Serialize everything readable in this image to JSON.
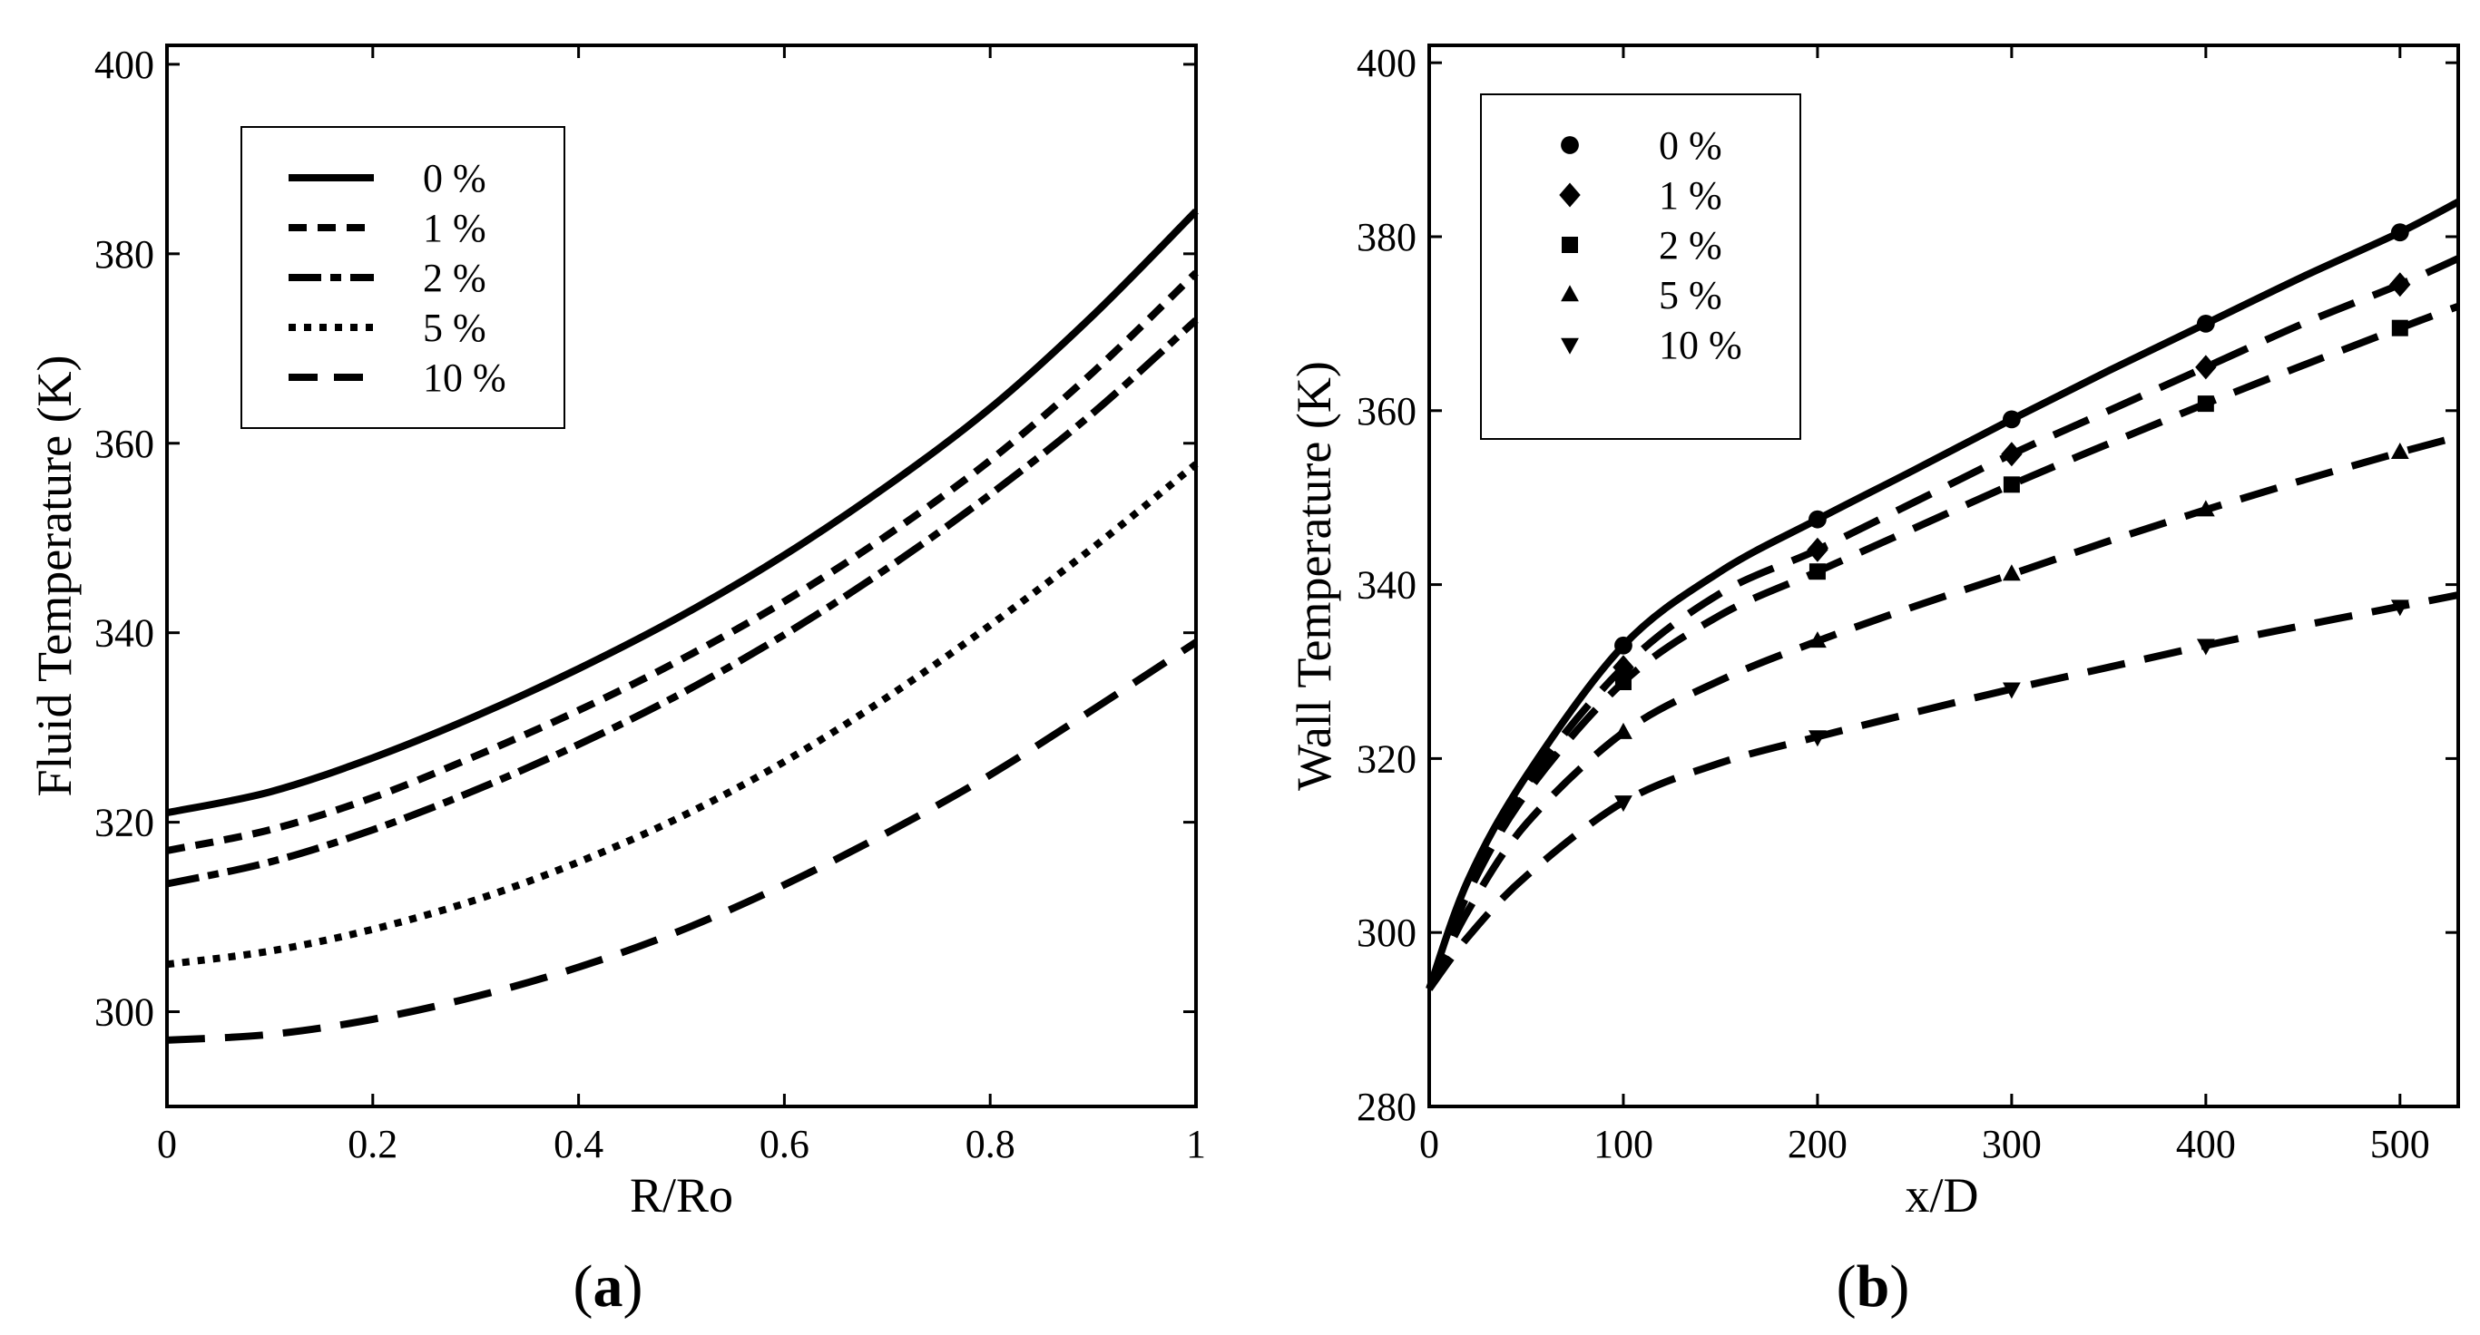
{
  "chart_data": [
    {
      "type": "line",
      "panel_label_prefix": "(",
      "panel_label_letter": "a",
      "panel_label_suffix": ")",
      "xlabel": "R/Ro",
      "ylabel": "Fluid Temperature (K)",
      "xlim": [
        0,
        1
      ],
      "ylim": [
        290,
        402
      ],
      "xticks": [
        "0",
        "0.2",
        "0.4",
        "0.6",
        "0.8",
        "1"
      ],
      "xtick_values": [
        0,
        0.2,
        0.4,
        0.6,
        0.8,
        1
      ],
      "yticks": [
        "300",
        "320",
        "340",
        "360",
        "380",
        "400"
      ],
      "ytick_values": [
        300,
        320,
        340,
        360,
        380,
        400
      ],
      "legend_position": "top-left",
      "series": [
        {
          "name": "0 %",
          "style": "solid",
          "x": [
            0,
            0.1,
            0.2,
            0.3,
            0.4,
            0.5,
            0.6,
            0.7,
            0.8,
            0.9,
            1.0
          ],
          "y": [
            321.0,
            323.2,
            326.8,
            331.2,
            336.2,
            341.8,
            348.2,
            355.5,
            363.7,
            373.5,
            384.5
          ]
        },
        {
          "name": "1 %",
          "style": "short-dash",
          "x": [
            0,
            0.1,
            0.2,
            0.3,
            0.4,
            0.5,
            0.6,
            0.7,
            0.8,
            0.9,
            1.0
          ],
          "y": [
            317.0,
            319.2,
            322.6,
            327.0,
            331.8,
            337.2,
            343.3,
            350.3,
            358.2,
            367.5,
            378.0
          ]
        },
        {
          "name": "2 %",
          "style": "dash-dot",
          "x": [
            0,
            0.1,
            0.2,
            0.3,
            0.4,
            0.5,
            0.6,
            0.7,
            0.8,
            0.9,
            1.0
          ],
          "y": [
            313.5,
            315.8,
            319.2,
            323.4,
            328.2,
            333.6,
            339.8,
            346.8,
            354.6,
            363.2,
            373.0
          ]
        },
        {
          "name": "5 %",
          "style": "dotted",
          "x": [
            0,
            0.1,
            0.2,
            0.3,
            0.4,
            0.5,
            0.6,
            0.7,
            0.8,
            0.9,
            1.0
          ],
          "y": [
            305.0,
            306.4,
            308.7,
            311.8,
            315.8,
            320.6,
            326.4,
            333.2,
            340.8,
            349.0,
            357.8
          ]
        },
        {
          "name": "10 %",
          "style": "long-dash",
          "x": [
            0,
            0.1,
            0.2,
            0.3,
            0.4,
            0.5,
            0.6,
            0.7,
            0.8,
            0.9,
            1.0
          ],
          "y": [
            297.0,
            297.6,
            299.2,
            301.6,
            304.7,
            308.6,
            313.4,
            318.9,
            325.0,
            331.9,
            339.0
          ]
        }
      ]
    },
    {
      "type": "line",
      "panel_label_prefix": "(",
      "panel_label_letter": "b",
      "panel_label_suffix": ")",
      "xlabel": "x/D",
      "ylabel": "Wall Temperature (K)",
      "xlim": [
        0,
        530
      ],
      "ylim": [
        280,
        402
      ],
      "xticks": [
        "0",
        "100",
        "200",
        "300",
        "400",
        "500"
      ],
      "xtick_values": [
        0,
        100,
        200,
        300,
        400,
        500
      ],
      "yticks": [
        "280",
        "300",
        "320",
        "340",
        "360",
        "380",
        "400"
      ],
      "ytick_values": [
        280,
        300,
        320,
        340,
        360,
        380,
        400
      ],
      "legend_position": "top-left",
      "series": [
        {
          "name": "0 %",
          "style": "solid",
          "marker": "circle",
          "x": [
            0,
            20,
            50,
            100,
            150,
            200,
            250,
            300,
            350,
            400,
            450,
            500,
            530
          ],
          "y": [
            293.5,
            306.0,
            318.0,
            333.0,
            341.5,
            347.5,
            353.2,
            359.0,
            364.6,
            370.0,
            375.4,
            380.5,
            384.0
          ],
          "marker_x": [
            100,
            200,
            300,
            400,
            500
          ],
          "marker_y": [
            333.0,
            347.5,
            359.0,
            370.0,
            380.5
          ]
        },
        {
          "name": "1 %",
          "style": "long-dash",
          "marker": "diamond",
          "x": [
            0,
            20,
            50,
            100,
            150,
            200,
            250,
            300,
            350,
            400,
            450,
            500,
            530
          ],
          "y": [
            293.5,
            305.0,
            317.0,
            330.5,
            339.0,
            344.0,
            349.5,
            355.0,
            360.0,
            365.0,
            370.0,
            374.5,
            377.5
          ],
          "marker_x": [
            100,
            200,
            300,
            400,
            500
          ],
          "marker_y": [
            330.5,
            344.0,
            355.0,
            365.0,
            374.5
          ]
        },
        {
          "name": "2 %",
          "style": "long-dash",
          "marker": "square",
          "x": [
            0,
            20,
            50,
            100,
            150,
            200,
            250,
            300,
            350,
            400,
            450,
            500,
            530
          ],
          "y": [
            293.5,
            304.5,
            316.0,
            328.8,
            336.5,
            341.5,
            346.5,
            351.5,
            356.2,
            360.8,
            365.2,
            369.5,
            372.0
          ],
          "marker_x": [
            100,
            200,
            300,
            400,
            500
          ],
          "marker_y": [
            328.8,
            341.5,
            351.5,
            360.8,
            369.5
          ]
        },
        {
          "name": "5 %",
          "style": "long-dash",
          "marker": "triangle-up",
          "x": [
            0,
            20,
            50,
            100,
            150,
            200,
            250,
            300,
            350,
            400,
            450,
            500,
            530
          ],
          "y": [
            293.5,
            302.5,
            312.5,
            323.0,
            329.0,
            333.5,
            337.5,
            341.2,
            345.0,
            348.6,
            352.0,
            355.2,
            357.0
          ],
          "marker_x": [
            100,
            200,
            300,
            400,
            500
          ],
          "marker_y": [
            323.0,
            333.5,
            341.2,
            348.6,
            355.2
          ]
        },
        {
          "name": "10 %",
          "style": "long-dash",
          "marker": "triangle-down",
          "x": [
            0,
            20,
            50,
            100,
            150,
            200,
            250,
            300,
            350,
            400,
            450,
            500,
            530
          ],
          "y": [
            293.5,
            299.5,
            306.5,
            315.0,
            319.5,
            322.5,
            325.3,
            328.0,
            330.5,
            333.0,
            335.3,
            337.5,
            338.8
          ],
          "marker_x": [
            100,
            200,
            300,
            400,
            500
          ],
          "marker_y": [
            315.0,
            322.5,
            328.0,
            333.0,
            337.5
          ]
        }
      ]
    }
  ]
}
